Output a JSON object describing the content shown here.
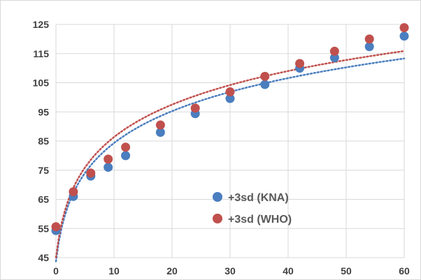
{
  "chart_data": {
    "type": "scatter",
    "xlim": [
      0,
      60
    ],
    "ylim": [
      45,
      125
    ],
    "x_ticks": [
      "0",
      "10",
      "20",
      "30",
      "40",
      "50",
      "60"
    ],
    "y_ticks": [
      "45",
      "55",
      "65",
      "75",
      "85",
      "95",
      "105",
      "115",
      "125"
    ],
    "grid": true,
    "legend_position": "right-center",
    "trendlines": "dotted",
    "series": [
      {
        "name": "+3sd (KNA)",
        "color": "#4a7ebf",
        "x": [
          0,
          3,
          6,
          9,
          12,
          18,
          24,
          30,
          36,
          42,
          48,
          54,
          60
        ],
        "y": [
          54.3,
          66.0,
          73.0,
          76.0,
          80.0,
          88.0,
          94.4,
          99.6,
          104.4,
          110.0,
          113.6,
          117.4,
          121.0
        ]
      },
      {
        "name": "+3sd (WHO)",
        "color": "#c0504d",
        "x": [
          0,
          3,
          6,
          9,
          12,
          18,
          24,
          30,
          36,
          42,
          48,
          54,
          60
        ],
        "y": [
          55.6,
          67.6,
          74.0,
          78.8,
          82.9,
          90.5,
          96.3,
          101.9,
          107.2,
          111.6,
          115.8,
          120.0,
          123.9
        ]
      }
    ]
  }
}
